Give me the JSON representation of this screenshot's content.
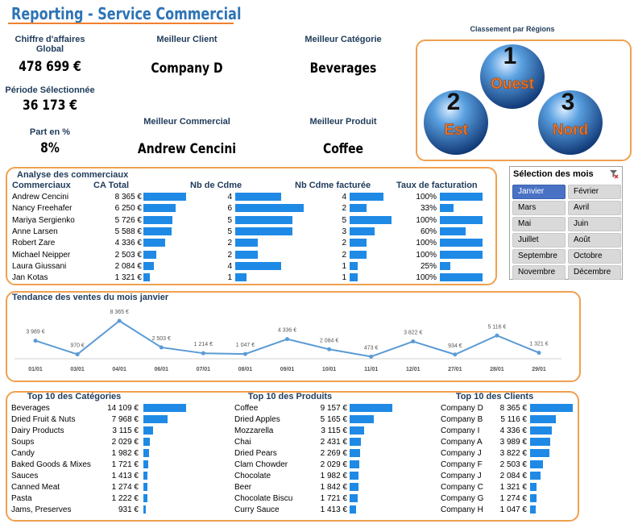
{
  "header": {
    "title": "Reporting  - Service Commercial"
  },
  "kpis": {
    "revenue": {
      "label": "Chiffre d'affaires Global",
      "value": "478 699 €"
    },
    "period": {
      "label": "Période Sélectionnée",
      "value": "36 173 €"
    },
    "share": {
      "label": "Part en %",
      "value": "8%"
    },
    "best_client": {
      "label": "Meilleur Client",
      "value": "Company D"
    },
    "best_category": {
      "label": "Meilleur Catégorie",
      "value": "Beverages"
    },
    "best_salesperson": {
      "label": "Meilleur Commercial",
      "value": "Andrew Cencini"
    },
    "best_product": {
      "label": "Meilleur Produit",
      "value": "Coffee"
    }
  },
  "ranking": {
    "title": "Classement par Régions",
    "regions": [
      {
        "rank": "1",
        "name": "Ouest"
      },
      {
        "rank": "2",
        "name": "Est"
      },
      {
        "rank": "3",
        "name": "Nord"
      }
    ]
  },
  "sales_table": {
    "title": "Analyse des commerciaux",
    "headers": [
      "Commerciaux",
      "CA Total",
      "Nb de Cdme",
      "Nb Cdme facturée",
      "Taux de facturation"
    ],
    "rows": [
      {
        "name": "Andrew Cencini",
        "ca": 8365,
        "ca_label": "8 365 €",
        "orders": 4,
        "invoiced": 4,
        "rate": 100,
        "rate_label": "100%"
      },
      {
        "name": "Nancy Freehafer",
        "ca": 6250,
        "ca_label": "6 250 €",
        "orders": 6,
        "invoiced": 2,
        "rate": 33,
        "rate_label": "33%"
      },
      {
        "name": "Mariya Sergienko",
        "ca": 5726,
        "ca_label": "5 726 €",
        "orders": 5,
        "invoiced": 5,
        "rate": 100,
        "rate_label": "100%"
      },
      {
        "name": "Anne Larsen",
        "ca": 5588,
        "ca_label": "5 588 €",
        "orders": 5,
        "invoiced": 3,
        "rate": 60,
        "rate_label": "60%"
      },
      {
        "name": "Robert Zare",
        "ca": 4336,
        "ca_label": "4 336 €",
        "orders": 2,
        "invoiced": 2,
        "rate": 100,
        "rate_label": "100%"
      },
      {
        "name": "Michael Neipper",
        "ca": 2503,
        "ca_label": "2 503 €",
        "orders": 2,
        "invoiced": 2,
        "rate": 100,
        "rate_label": "100%"
      },
      {
        "name": "Laura Giussani",
        "ca": 2084,
        "ca_label": "2 084 €",
        "orders": 4,
        "invoiced": 1,
        "rate": 25,
        "rate_label": "25%"
      },
      {
        "name": "Jan Kotas",
        "ca": 1321,
        "ca_label": "1 321 €",
        "orders": 1,
        "invoiced": 1,
        "rate": 100,
        "rate_label": "100%"
      }
    ]
  },
  "slicer": {
    "title": "Sélection des mois",
    "selected": "Janvier",
    "items": [
      "Janvier",
      "Février",
      "Mars",
      "Avril",
      "Mai",
      "Juin",
      "Juillet",
      "Août",
      "Septembre",
      "Octobre",
      "Novembre",
      "Décembre"
    ]
  },
  "chart_data": {
    "type": "line",
    "title": "Tendance des ventes du mois janvier",
    "color": "#5b9bd5",
    "categories": [
      "01/01",
      "03/01",
      "04/01",
      "06/01",
      "07/01",
      "08/01",
      "09/01",
      "10/01",
      "11/01",
      "12/01",
      "27/01",
      "28/01",
      "29/01"
    ],
    "values": [
      3989,
      970,
      8365,
      2503,
      1214,
      1047,
      4336,
      2084,
      473,
      3822,
      934,
      5116,
      1321
    ],
    "value_labels": [
      "3 989 €",
      "970 €",
      "8 365 €",
      "2 503 €",
      "1 214 €",
      "1 047 €",
      "4 336 €",
      "2 084 €",
      "473 €",
      "3 822 €",
      "934 €",
      "5 116 €",
      "1 321 €"
    ]
  },
  "top10": [
    {
      "title": "Top 10 des Catégories",
      "rows": [
        {
          "name": "Beverages",
          "value": 14109,
          "label": "14 109 €"
        },
        {
          "name": "Dried Fruit & Nuts",
          "value": 7968,
          "label": "7 968 €"
        },
        {
          "name": "Dairy Products",
          "value": 3115,
          "label": "3 115 €"
        },
        {
          "name": "Soups",
          "value": 2029,
          "label": "2 029 €"
        },
        {
          "name": "Candy",
          "value": 1982,
          "label": "1 982 €"
        },
        {
          "name": "Baked Goods & Mixes",
          "value": 1721,
          "label": "1 721 €"
        },
        {
          "name": "Sauces",
          "value": 1413,
          "label": "1 413 €"
        },
        {
          "name": "Canned Meat",
          "value": 1274,
          "label": "1 274 €"
        },
        {
          "name": "Pasta",
          "value": 1222,
          "label": "1 222 €"
        },
        {
          "name": "Jams, Preserves",
          "value": 931,
          "label": "931 €"
        }
      ]
    },
    {
      "title": "Top 10 des Produits",
      "rows": [
        {
          "name": "Coffee",
          "value": 9157,
          "label": "9 157 €"
        },
        {
          "name": "Dried Apples",
          "value": 5165,
          "label": "5 165 €"
        },
        {
          "name": "Mozzarella",
          "value": 3115,
          "label": "3 115 €"
        },
        {
          "name": "Chai",
          "value": 2431,
          "label": "2 431 €"
        },
        {
          "name": "Dried Pears",
          "value": 2269,
          "label": "2 269 €"
        },
        {
          "name": "Clam Chowder",
          "value": 2029,
          "label": "2 029 €"
        },
        {
          "name": "Chocolate",
          "value": 1982,
          "label": "1 982 €"
        },
        {
          "name": "Beer",
          "value": 1842,
          "label": "1 842 €"
        },
        {
          "name": "Chocolate Biscuits Mix",
          "value": 1721,
          "label": "1 721 €"
        },
        {
          "name": "Curry Sauce",
          "value": 1413,
          "label": "1 413 €"
        }
      ]
    },
    {
      "title": "Top 10 des Clients",
      "rows": [
        {
          "name": "Company D",
          "value": 8365,
          "label": "8 365 €"
        },
        {
          "name": "Company B",
          "value": 5116,
          "label": "5 116 €"
        },
        {
          "name": "Company I",
          "value": 4336,
          "label": "4 336 €"
        },
        {
          "name": "Company A",
          "value": 3989,
          "label": "3 989 €"
        },
        {
          "name": "Company J",
          "value": 3822,
          "label": "3 822 €"
        },
        {
          "name": "Company F",
          "value": 2503,
          "label": "2 503 €"
        },
        {
          "name": "Company J",
          "value": 2084,
          "label": "2 084 €"
        },
        {
          "name": "Company C",
          "value": 1321,
          "label": "1 321 €"
        },
        {
          "name": "Company G",
          "value": 1274,
          "label": "1 274 €"
        },
        {
          "name": "Company H",
          "value": 1047,
          "label": "1 047 €"
        }
      ]
    }
  ]
}
